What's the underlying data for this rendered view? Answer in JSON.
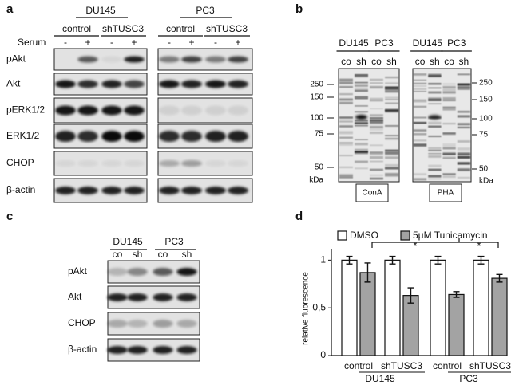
{
  "panel_a": {
    "label": "a",
    "cell_lines": [
      "DU145",
      "PC3"
    ],
    "conditions": [
      "control",
      "shTUSC3",
      "control",
      "shTUSC3"
    ],
    "serum_label": "Serum",
    "serum": [
      "-",
      "+",
      "-",
      "+",
      "-",
      "+",
      "-",
      "+"
    ],
    "rows": [
      "pAkt",
      "Akt",
      "pERK1/2",
      "ERK1/2",
      "CHOP",
      "β-actin"
    ]
  },
  "panel_b": {
    "label": "b",
    "blots": [
      {
        "cell_lines": [
          "DU145",
          "PC3"
        ],
        "lanes": [
          "co",
          "sh",
          "co",
          "sh"
        ],
        "lectin": "ConA",
        "markers": [
          250,
          150,
          100,
          75,
          50
        ],
        "unit": "kDa"
      },
      {
        "cell_lines": [
          "DU145",
          "PC3"
        ],
        "lanes": [
          "co",
          "sh",
          "co",
          "sh"
        ],
        "lectin": "PHA",
        "markers": [
          250,
          150,
          100,
          75,
          50
        ],
        "unit": "kDa"
      }
    ]
  },
  "panel_c": {
    "label": "c",
    "cell_lines": [
      "DU145",
      "PC3"
    ],
    "lanes": [
      "co",
      "sh",
      "co",
      "sh"
    ],
    "rows": [
      "pAkt",
      "Akt",
      "CHOP",
      "β-actin"
    ]
  },
  "chart_data": {
    "type": "bar",
    "label": "d",
    "groups": [
      "DU145",
      "PC3"
    ],
    "categories": [
      "control",
      "shTUSC3",
      "control",
      "shTUSC3"
    ],
    "series": [
      {
        "name": "DMSO",
        "color": "#ffffff",
        "values": [
          1,
          1,
          1,
          1
        ],
        "errors": [
          0.04,
          0.04,
          0.04,
          0.04
        ]
      },
      {
        "name": "5μM Tunicamycin",
        "color": "#a3a3a3",
        "values": [
          0.87,
          0.63,
          0.64,
          0.81
        ],
        "errors": [
          0.1,
          0.08,
          0.03,
          0.04
        ]
      }
    ],
    "y_label": "relative fluorescence",
    "ylim": [
      0,
      1.12
    ],
    "yticks": [
      0,
      {
        "value": 0.5,
        "label": "0,5"
      },
      1
    ],
    "annotations": [
      "*",
      "*"
    ]
  }
}
